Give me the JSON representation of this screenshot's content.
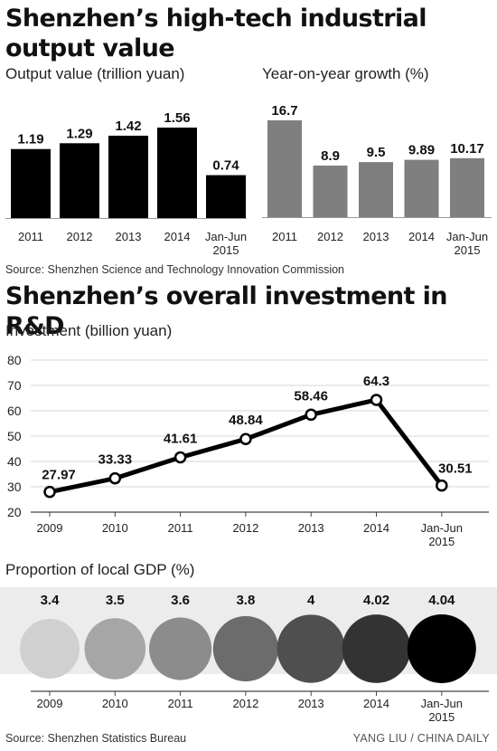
{
  "title1": "Shenzhen’s high-tech industrial output value",
  "title2": "Shenzhen’s overall investment in R&D",
  "source1": "Source: Shenzhen Science and Technology Innovation Commission",
  "source2": "Source: Shenzhen Statistics Bureau",
  "credit": "YANG LIU / CHINA DAILY",
  "chart_data": [
    {
      "type": "bar",
      "title": "Output value (trillion yuan)",
      "categories": [
        "2011",
        "2012",
        "2013",
        "2014",
        "Jan-Jun 2015"
      ],
      "values": [
        1.19,
        1.29,
        1.42,
        1.56,
        0.74
      ],
      "value_labels": [
        "1.19",
        "1.29",
        "1.42",
        "1.56",
        "0.74"
      ],
      "color": "#000000"
    },
    {
      "type": "bar",
      "title": "Year-on-year growth (%)",
      "categories": [
        "2011",
        "2012",
        "2013",
        "2014",
        "Jan-Jun 2015"
      ],
      "values": [
        16.7,
        8.9,
        9.5,
        9.89,
        10.17
      ],
      "value_labels": [
        "16.7",
        "8.9",
        "9.5",
        "9.89",
        "10.17"
      ],
      "color": "#7f7f7f"
    },
    {
      "type": "line",
      "title": "Investment (billion yuan)",
      "categories": [
        "2009",
        "2010",
        "2011",
        "2012",
        "2013",
        "2014",
        "Jan-Jun 2015"
      ],
      "values": [
        27.97,
        33.33,
        41.61,
        48.84,
        58.46,
        64.3,
        30.51
      ],
      "value_labels": [
        "27.97",
        "33.33",
        "41.61",
        "48.84",
        "58.46",
        "64.3",
        "30.51"
      ],
      "yticks": [
        "20",
        "30",
        "40",
        "50",
        "60",
        "70",
        "80"
      ],
      "ylim": [
        20,
        80
      ],
      "grid": true
    },
    {
      "type": "bubble",
      "title": "Proportion of local GDP (%)",
      "categories": [
        "2009",
        "2010",
        "2011",
        "2012",
        "2013",
        "2014",
        "Jan-Jun 2015"
      ],
      "values": [
        3.4,
        3.5,
        3.6,
        3.8,
        4,
        4.02,
        4.04
      ],
      "value_labels": [
        "3.4",
        "3.5",
        "3.6",
        "3.8",
        "4",
        "4.02",
        "4.04"
      ],
      "colors": [
        "#d0d0d0",
        "#a6a6a6",
        "#8c8c8c",
        "#6c6c6c",
        "#4f4f4f",
        "#333333",
        "#000000"
      ]
    }
  ]
}
